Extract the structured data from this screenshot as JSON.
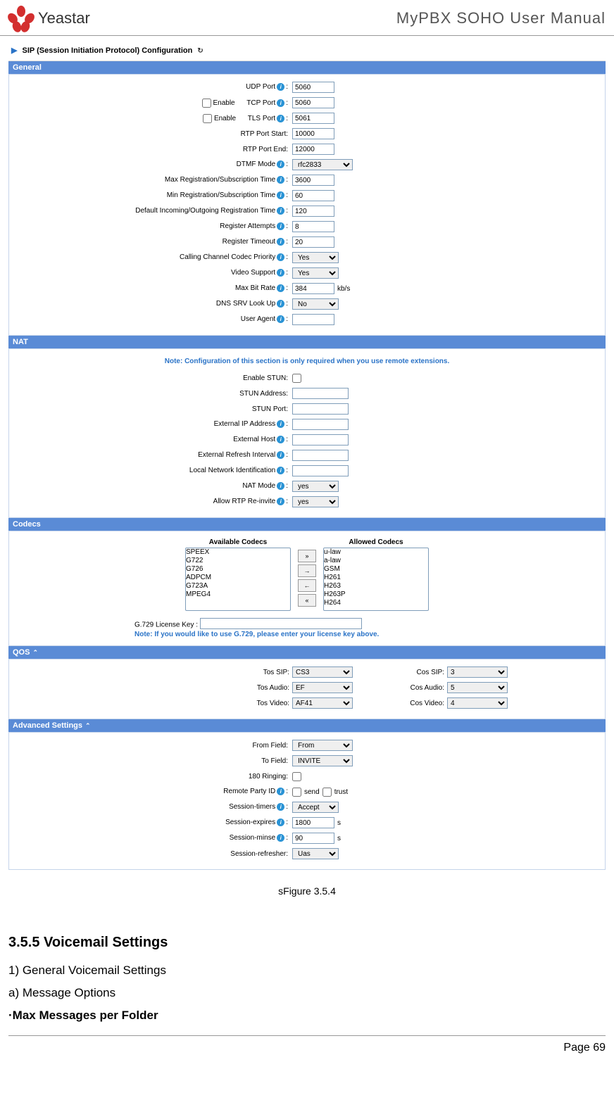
{
  "header": {
    "brand": "Yeastar",
    "title": "MyPBX SOHO User Manual"
  },
  "window": {
    "title": "SIP (Session Initiation Protocol) Configuration"
  },
  "general": {
    "bar": "General",
    "udp_port_lbl": "UDP Port",
    "udp_port": "5060",
    "enable_lbl": "Enable",
    "tcp_port_lbl": "TCP Port",
    "tcp_port": "5060",
    "tls_port_lbl": "TLS Port",
    "tls_port": "5061",
    "rtp_start_lbl": "RTP Port Start:",
    "rtp_start": "10000",
    "rtp_end_lbl": "RTP Port End:",
    "rtp_end": "12000",
    "dtmf_lbl": "DTMF Mode",
    "dtmf": "rfc2833",
    "max_reg_lbl": "Max Registration/Subscription Time",
    "max_reg": "3600",
    "min_reg_lbl": "Min Registration/Subscription Time",
    "min_reg": "60",
    "def_reg_lbl": "Default Incoming/Outgoing Registration Time",
    "def_reg": "120",
    "reg_attempts_lbl": "Register Attempts",
    "reg_attempts": "8",
    "reg_timeout_lbl": "Register Timeout",
    "reg_timeout": "20",
    "codec_prio_lbl": "Calling Channel Codec Priority",
    "codec_prio": "Yes",
    "video_lbl": "Video Support",
    "video": "Yes",
    "bitrate_lbl": "Max Bit Rate",
    "bitrate": "384",
    "bitrate_unit": "kb/s",
    "dns_lbl": "DNS SRV Look Up",
    "dns": "No",
    "ua_lbl": "User Agent",
    "ua": ""
  },
  "nat": {
    "bar": "NAT",
    "note": "Note: Configuration of this section is only required when you use remote extensions.",
    "enable_stun_lbl": "Enable STUN:",
    "stun_addr_lbl": "STUN Address:",
    "stun_addr": "",
    "stun_port_lbl": "STUN Port:",
    "stun_port": "",
    "ext_ip_lbl": "External IP Address",
    "ext_ip": "",
    "ext_host_lbl": "External Host",
    "ext_host": "",
    "ext_refresh_lbl": "External Refresh Interval",
    "ext_refresh": "",
    "local_net_lbl": "Local Network Identification",
    "local_net": "",
    "nat_mode_lbl": "NAT Mode",
    "nat_mode": "yes",
    "rtp_reinvite_lbl": "Allow RTP Re-invite",
    "rtp_reinvite": "yes"
  },
  "codecs": {
    "bar": "Codecs",
    "available_lbl": "Available Codecs",
    "allowed_lbl": "Allowed Codecs",
    "available": [
      "SPEEX",
      "G722",
      "G726",
      "ADPCM",
      "G723A",
      "MPEG4"
    ],
    "allowed": [
      "u-law",
      "a-law",
      "GSM",
      "H261",
      "H263",
      "H263P",
      "H264"
    ],
    "license_lbl": "G.729 License Key :",
    "note": "Note: If you would like to use G.729, please enter your license key above."
  },
  "qos": {
    "bar": "QOS",
    "tos_sip_lbl": "Tos SIP:",
    "tos_sip": "CS3",
    "cos_sip_lbl": "Cos SIP:",
    "cos_sip": "3",
    "tos_audio_lbl": "Tos Audio:",
    "tos_audio": "EF",
    "cos_audio_lbl": "Cos Audio:",
    "cos_audio": "5",
    "tos_video_lbl": "Tos Video:",
    "tos_video": "AF41",
    "cos_video_lbl": "Cos Video:",
    "cos_video": "4"
  },
  "adv": {
    "bar": "Advanced Settings",
    "from_lbl": "From Field:",
    "from": "From",
    "to_lbl": "To Field:",
    "to": "INVITE",
    "ringing_lbl": "180 Ringing:",
    "remote_party_lbl": "Remote Party ID",
    "send_lbl": "send",
    "trust_lbl": "trust",
    "timers_lbl": "Session-timers",
    "timers": "Accept",
    "expires_lbl": "Session-expires",
    "expires": "1800",
    "expires_unit": "s",
    "minse_lbl": "Session-minse",
    "minse": "90",
    "minse_unit": "s",
    "refresher_lbl": "Session-refresher:",
    "refresher": "Uas"
  },
  "caption": "sFigure 3.5.4",
  "section": {
    "heading": "3.5.5 Voicemail Settings",
    "line1": "1) General Voicemail Settings",
    "line2": "a) Message Options",
    "bullet": "·Max Messages per Folder"
  },
  "footer": "Page 69"
}
